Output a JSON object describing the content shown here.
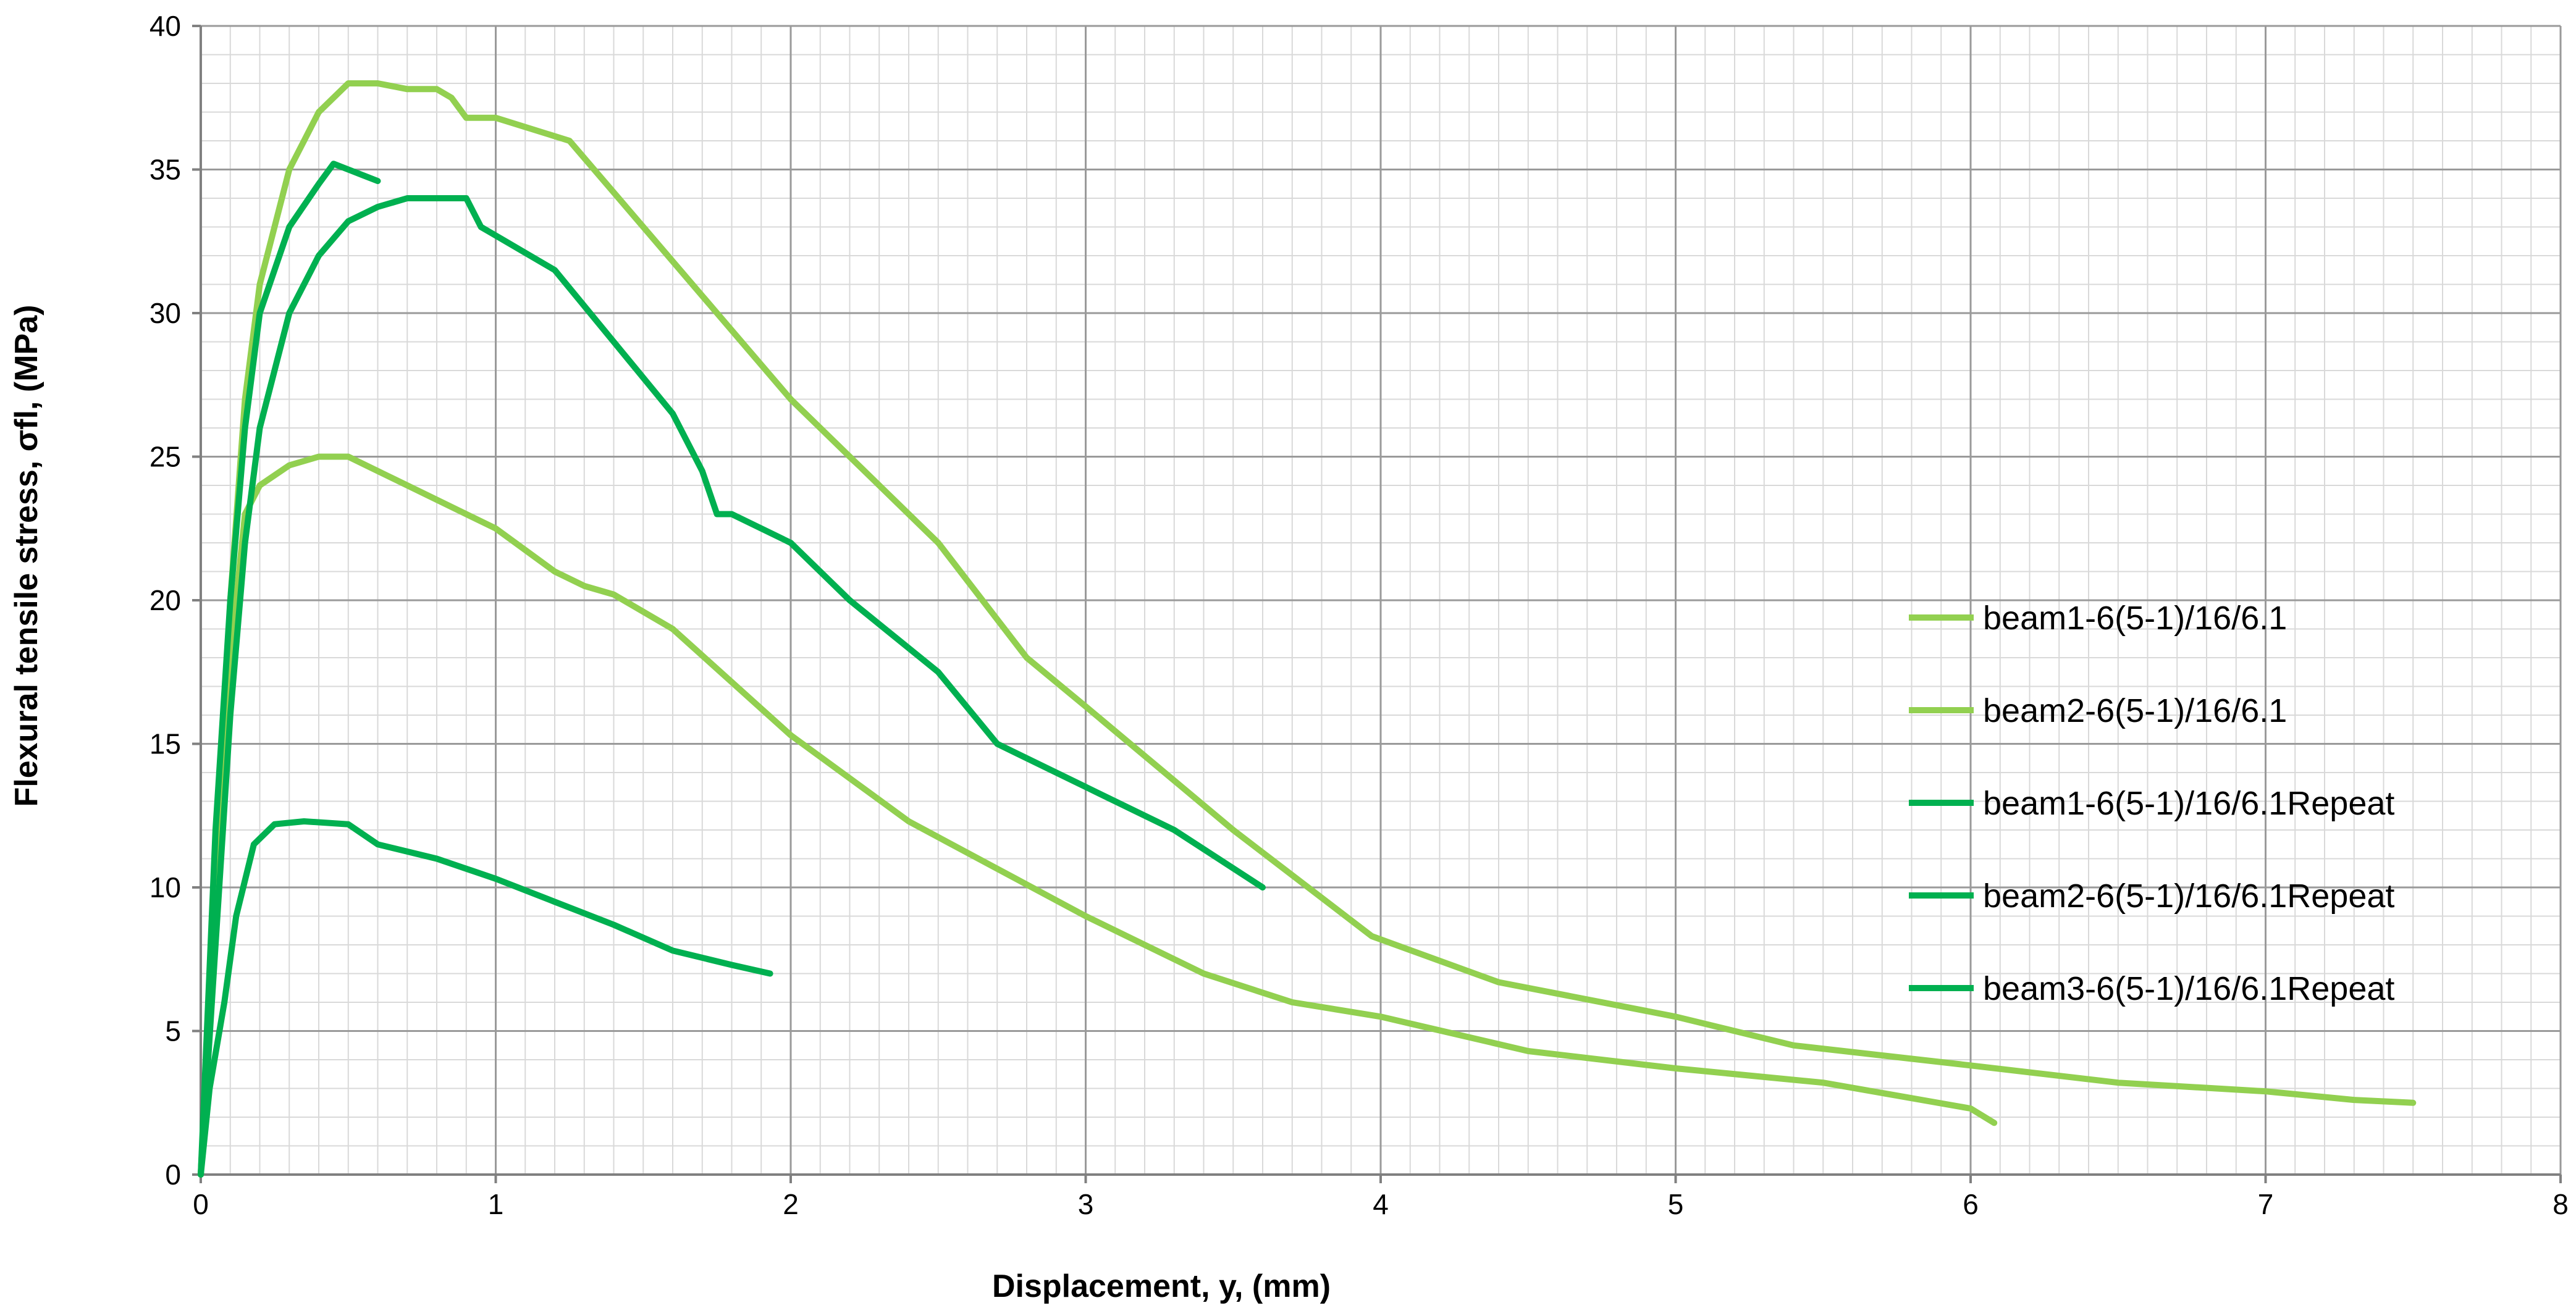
{
  "chart_data": {
    "type": "line",
    "xlabel": "Displacement, y, (mm)",
    "ylabel": "Flexural tensile stress, σfl, (MPa)",
    "xlim": [
      0,
      8
    ],
    "ylim": [
      0,
      40
    ],
    "x_ticks": [
      "0",
      "1",
      "2",
      "3",
      "4",
      "5",
      "6",
      "7",
      "8"
    ],
    "y_ticks": [
      "0",
      "5",
      "10",
      "15",
      "20",
      "25",
      "30",
      "35",
      "40"
    ],
    "grid": true,
    "legend_position": "right",
    "series": [
      {
        "name": "beam1-6(5-1)/16/6.1",
        "color": "#92d050",
        "points": [
          [
            0,
            0
          ],
          [
            0.05,
            10
          ],
          [
            0.1,
            20
          ],
          [
            0.15,
            27
          ],
          [
            0.2,
            31
          ],
          [
            0.3,
            35
          ],
          [
            0.4,
            37
          ],
          [
            0.5,
            38
          ],
          [
            0.6,
            38
          ],
          [
            0.7,
            37.8
          ],
          [
            0.8,
            37.8
          ],
          [
            0.85,
            37.5
          ],
          [
            0.9,
            36.8
          ],
          [
            1.0,
            36.8
          ],
          [
            1.25,
            36
          ],
          [
            1.5,
            33
          ],
          [
            2.0,
            27
          ],
          [
            2.5,
            22
          ],
          [
            2.8,
            18
          ],
          [
            3.0,
            16.3
          ],
          [
            3.5,
            12
          ],
          [
            3.97,
            8.3
          ],
          [
            4.4,
            6.7
          ],
          [
            5.0,
            5.5
          ],
          [
            5.4,
            4.5
          ],
          [
            6.0,
            3.8
          ],
          [
            6.5,
            3.2
          ],
          [
            7.0,
            2.9
          ],
          [
            7.3,
            2.6
          ],
          [
            7.5,
            2.5
          ]
        ]
      },
      {
        "name": "beam2-6(5-1)/16/6.1",
        "color": "#92d050",
        "points": [
          [
            0,
            0
          ],
          [
            0.05,
            10
          ],
          [
            0.1,
            18
          ],
          [
            0.15,
            23
          ],
          [
            0.2,
            24
          ],
          [
            0.3,
            24.7
          ],
          [
            0.4,
            25
          ],
          [
            0.5,
            25
          ],
          [
            0.6,
            24.5
          ],
          [
            0.8,
            23.5
          ],
          [
            1.0,
            22.5
          ],
          [
            1.2,
            21
          ],
          [
            1.3,
            20.5
          ],
          [
            1.4,
            20.2
          ],
          [
            1.6,
            19
          ],
          [
            2.0,
            15.3
          ],
          [
            2.4,
            12.3
          ],
          [
            3.0,
            9
          ],
          [
            3.4,
            7
          ],
          [
            3.7,
            6
          ],
          [
            4.0,
            5.5
          ],
          [
            4.5,
            4.3
          ],
          [
            5.0,
            3.7
          ],
          [
            5.5,
            3.2
          ],
          [
            6.0,
            2.3
          ],
          [
            6.08,
            1.8
          ]
        ]
      },
      {
        "name": "beam1-6(5-1)/16/6.1Repeat",
        "color": "#00b050",
        "points": [
          [
            0,
            0
          ],
          [
            0.05,
            8
          ],
          [
            0.1,
            16
          ],
          [
            0.15,
            22
          ],
          [
            0.2,
            26
          ],
          [
            0.3,
            30
          ],
          [
            0.4,
            32
          ],
          [
            0.5,
            33.2
          ],
          [
            0.6,
            33.7
          ],
          [
            0.7,
            34
          ],
          [
            0.8,
            34
          ],
          [
            0.9,
            34
          ],
          [
            0.95,
            33
          ],
          [
            1.0,
            32.7
          ],
          [
            1.2,
            31.5
          ],
          [
            1.4,
            29
          ],
          [
            1.6,
            26.5
          ],
          [
            1.7,
            24.5
          ],
          [
            1.75,
            23
          ],
          [
            1.8,
            23
          ],
          [
            2.0,
            22
          ],
          [
            2.2,
            20
          ],
          [
            2.5,
            17.5
          ],
          [
            2.7,
            15
          ],
          [
            3.0,
            13.5
          ],
          [
            3.3,
            12
          ],
          [
            3.6,
            10
          ]
        ]
      },
      {
        "name": "beam2-6(5-1)/16/6.1Repeat",
        "color": "#00b050",
        "points": [
          [
            0,
            0
          ],
          [
            0.05,
            12
          ],
          [
            0.1,
            20
          ],
          [
            0.15,
            26
          ],
          [
            0.2,
            30
          ],
          [
            0.3,
            33
          ],
          [
            0.4,
            34.5
          ],
          [
            0.45,
            35.2
          ],
          [
            0.5,
            35
          ],
          [
            0.55,
            34.8
          ],
          [
            0.6,
            34.6
          ]
        ]
      },
      {
        "name": "beam3-6(5-1)/16/6.1Repeat",
        "color": "#00b050",
        "points": [
          [
            0,
            0
          ],
          [
            0.03,
            3
          ],
          [
            0.08,
            6
          ],
          [
            0.12,
            9
          ],
          [
            0.18,
            11.5
          ],
          [
            0.25,
            12.2
          ],
          [
            0.35,
            12.3
          ],
          [
            0.5,
            12.2
          ],
          [
            0.6,
            11.5
          ],
          [
            0.8,
            11
          ],
          [
            1.0,
            10.3
          ],
          [
            1.2,
            9.5
          ],
          [
            1.4,
            8.7
          ],
          [
            1.6,
            7.8
          ],
          [
            1.8,
            7.3
          ],
          [
            1.93,
            7
          ]
        ]
      }
    ]
  }
}
